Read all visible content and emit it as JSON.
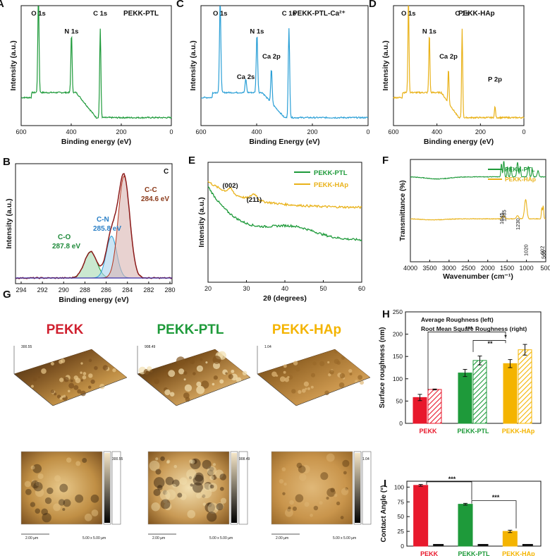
{
  "panel_letters": [
    "A",
    "B",
    "C",
    "D",
    "E",
    "F",
    "G",
    "H",
    "I"
  ],
  "xps": {
    "xlabel": "Binding energy (eV)",
    "xlabel_c": "Binding Energy (eV)",
    "ylabel": "Intensity (a.u.)",
    "xticks": [
      "600",
      "400",
      "200",
      "0"
    ]
  },
  "chart_data": [
    {
      "type": "line",
      "panel": "A",
      "title": "PEKK-PTL",
      "color": "#1e9a3a",
      "xlim": [
        600,
        0
      ],
      "peaks": [
        {
          "label": "O 1s",
          "x": 531
        },
        {
          "label": "N 1s",
          "x": 399
        },
        {
          "label": "C 1s",
          "x": 284
        }
      ]
    },
    {
      "type": "line",
      "panel": "C",
      "title": "PEKK-PTL-Ca²⁺",
      "color": "#2a9fd6",
      "xlim": [
        600,
        0
      ],
      "peaks": [
        {
          "label": "O 1s",
          "x": 531
        },
        {
          "label": "Ca 2s",
          "x": 439
        },
        {
          "label": "N 1s",
          "x": 399
        },
        {
          "label": "Ca 2p",
          "x": 347
        },
        {
          "label": "C 1s",
          "x": 284
        }
      ]
    },
    {
      "type": "line",
      "panel": "D",
      "title": "PEKK-HAp",
      "color": "#e9b21a",
      "xlim": [
        600,
        0
      ],
      "peaks": [
        {
          "label": "O 1s",
          "x": 531
        },
        {
          "label": "N 1s",
          "x": 435
        },
        {
          "label": "Ca 2p",
          "x": 347
        },
        {
          "label": "C 1s",
          "x": 284
        },
        {
          "label": "P 2p",
          "x": 133
        }
      ]
    },
    {
      "type": "line",
      "panel": "B",
      "title": "C",
      "xlabel": "Binding energy (eV)",
      "ylabel": "Intensity (a.u.)",
      "xticks": [
        "294",
        "292",
        "290",
        "288",
        "286",
        "284",
        "282",
        "280"
      ],
      "xlim": [
        295,
        280
      ],
      "components": [
        {
          "label": "C-C",
          "value": "284.6 eV",
          "center": 284.6,
          "color": "#b5361f"
        },
        {
          "label": "C-N",
          "value": "285.8 eV",
          "center": 285.8,
          "color": "#2a9fd6"
        },
        {
          "label": "C-O",
          "value": "287.8 eV",
          "center": 287.8,
          "color": "#1e9a3a"
        }
      ]
    },
    {
      "type": "line",
      "panel": "E",
      "xlabel": "2θ (degrees)",
      "ylabel": "Intensity (a.u.)",
      "xticks": [
        "20",
        "30",
        "40",
        "50",
        "60"
      ],
      "xlim": [
        20,
        60
      ],
      "series": [
        {
          "name": "PEKK-PTL",
          "color": "#1e9a3a"
        },
        {
          "name": "PEKK-HAp",
          "color": "#e9b21a"
        }
      ],
      "annotations": [
        "(002)",
        "(211)"
      ]
    },
    {
      "type": "line",
      "panel": "F",
      "xlabel": "Wavenumber (cm⁻¹)",
      "ylabel": "Transmittance (%)",
      "xticks": [
        "4000",
        "3500",
        "3000",
        "2500",
        "2000",
        "1500",
        "1000",
        "500"
      ],
      "xlim": [
        4000,
        500
      ],
      "series": [
        {
          "name": "PEKK-PTL",
          "color": "#1e9a3a"
        },
        {
          "name": "PEKK-HAp",
          "color": "#e9b21a"
        }
      ],
      "annotations": [
        "1645",
        "1585",
        "1230",
        "1020",
        "602",
        "566"
      ]
    },
    {
      "type": "bar",
      "panel": "H",
      "ylabel": "Surface roughness (nm)",
      "legend_line1": "Average Roughness  (left)",
      "legend_line2": "Root Mean Square Roughness  (right)",
      "categories": [
        "PEKK",
        "PEKK-PTL",
        "PEKK-HAp"
      ],
      "cat_colors": [
        "#e8192c",
        "#1e9a3a",
        "#f4b400"
      ],
      "series": [
        {
          "name": "Average Roughness",
          "values": [
            58,
            113,
            134
          ],
          "errors": [
            7,
            8,
            9
          ]
        },
        {
          "name": "Root Mean Square Roughness",
          "values": [
            76,
            141,
            165
          ],
          "errors": [
            1,
            10,
            12
          ]
        }
      ],
      "ylim": [
        0,
        250
      ],
      "yticks": [
        "0",
        "50",
        "100",
        "150",
        "200",
        "250"
      ],
      "significance": [
        "***",
        "*",
        "**"
      ]
    },
    {
      "type": "bar",
      "panel": "I",
      "ylabel": "Contact Angle (°)",
      "categories": [
        "PEKK",
        "PEKK-PTL",
        "PEKK-HAp"
      ],
      "cat_colors": [
        "#e8192c",
        "#1e9a3a",
        "#f4b400"
      ],
      "series": [
        {
          "name": "Contact angle",
          "values": [
            103,
            71,
            25
          ],
          "errors": [
            1.5,
            1.5,
            2
          ]
        },
        {
          "name": "Black bar",
          "values": [
            3,
            3,
            3
          ],
          "errors": [
            0,
            0,
            0
          ]
        }
      ],
      "ylim": [
        0,
        110
      ],
      "yticks": [
        "0",
        "25",
        "50",
        "75",
        "100"
      ],
      "significance": [
        "***",
        "***"
      ]
    }
  ],
  "afm": {
    "titles": [
      "PEKK",
      "PEKK-PTL",
      "PEKK-HAp"
    ],
    "colors": [
      "#d0202f",
      "#1e9a3a",
      "#f4b400"
    ],
    "scale_bar": "2.00 µm",
    "scan_size": "5.00 x 5.00 µm",
    "z_max": [
      "300.55",
      "908.49",
      "1.04"
    ]
  }
}
